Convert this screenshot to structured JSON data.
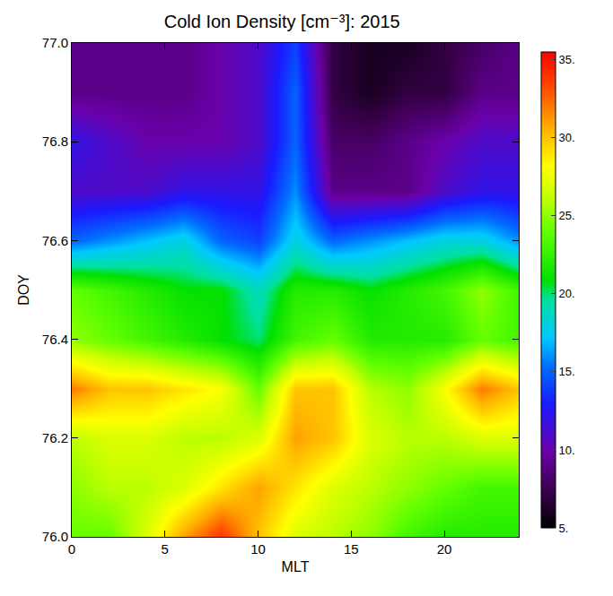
{
  "chart_data": {
    "type": "heatmap",
    "title": "Cold Ion Density [cm⁻³]: 2015",
    "x_label": "MLT",
    "y_label": "DOY",
    "x": [
      0,
      2,
      4,
      6,
      8,
      10,
      12,
      14,
      16,
      18,
      20,
      22,
      24
    ],
    "y": [
      76.0,
      76.1,
      76.2,
      76.3,
      76.4,
      76.5,
      76.6,
      76.7,
      76.8,
      76.9,
      77.0
    ],
    "cells": [
      [
        24,
        24,
        27,
        31,
        34,
        30,
        27,
        26,
        25,
        23,
        22,
        22,
        22
      ],
      [
        25,
        26,
        26,
        27,
        29,
        31,
        29,
        27,
        26,
        25,
        24,
        23,
        23
      ],
      [
        26,
        27,
        27,
        26,
        26,
        27,
        31,
        30,
        27,
        26,
        26,
        27,
        27
      ],
      [
        32,
        30,
        30,
        29,
        28,
        24,
        30,
        30,
        26,
        25,
        28,
        32,
        30
      ],
      [
        25,
        24,
        23,
        22,
        21,
        20,
        23,
        24,
        22,
        22,
        22,
        24,
        23
      ],
      [
        24,
        23,
        22,
        21,
        21,
        19,
        22,
        22,
        21,
        22,
        23,
        25,
        23
      ],
      [
        15,
        16,
        17,
        18,
        15,
        14,
        18,
        15,
        16,
        17,
        18,
        18,
        16
      ],
      [
        11,
        11,
        11,
        12,
        12,
        12,
        16,
        9,
        9,
        9,
        11,
        12,
        12
      ],
      [
        12,
        11,
        10,
        10,
        10,
        11,
        15,
        8,
        8,
        9,
        10,
        11,
        11
      ],
      [
        9,
        9,
        9,
        9,
        10,
        11,
        15,
        7,
        6,
        7,
        7,
        9,
        9
      ],
      [
        9,
        9,
        9,
        9,
        10,
        11,
        14,
        7,
        6,
        6,
        7,
        8,
        9
      ]
    ],
    "xlim": [
      0,
      24
    ],
    "xticks": [
      0,
      5,
      10,
      15,
      20
    ],
    "ylim": [
      76.0,
      77.0
    ],
    "yticks": [
      {
        "value": 76.0,
        "label": "76.0"
      },
      76.2,
      76.4,
      76.6,
      76.8,
      {
        "value": 77.0,
        "label": "77.0"
      }
    ],
    "colorbar_range": [
      5,
      35.5
    ],
    "colorbar_ticks": [
      {
        "value": 5,
        "label": "5."
      },
      {
        "value": 10,
        "label": "10."
      },
      {
        "value": 15,
        "label": "15."
      },
      {
        "value": 20,
        "label": "20."
      },
      {
        "value": 25,
        "label": "25."
      },
      {
        "value": 30,
        "label": "30."
      },
      {
        "value": 35,
        "label": "35."
      }
    ]
  }
}
